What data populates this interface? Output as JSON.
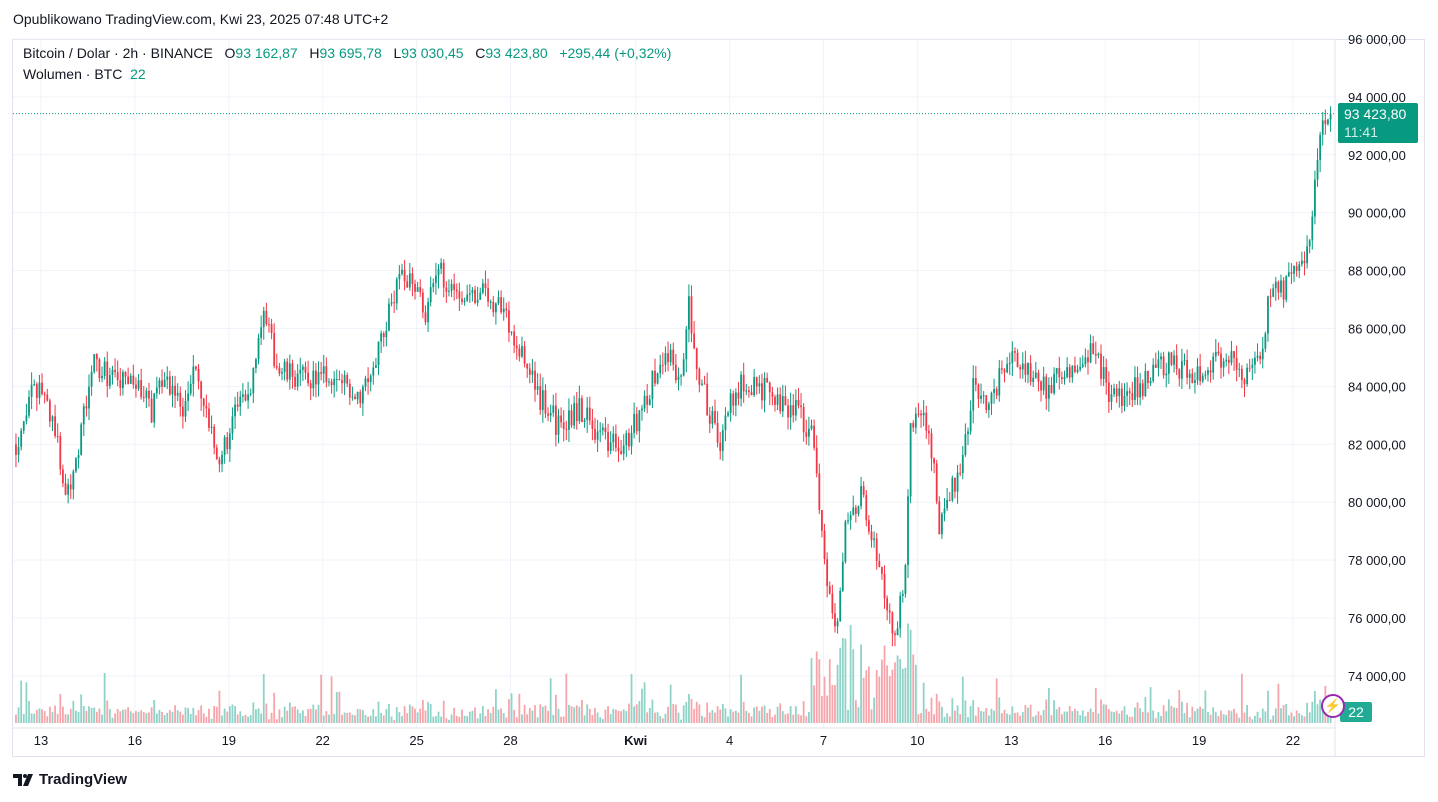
{
  "header": {
    "published": "Opublikowano TradingView.com, Kwi 23, 2025 07:48 UTC+2"
  },
  "legend": {
    "symbol": "Bitcoin / Dolar · 2h · BINANCE",
    "o_label": "O",
    "o": "93 162,87",
    "h_label": "H",
    "h": "93 695,78",
    "l_label": "L",
    "l": "93 030,45",
    "c_label": "C",
    "c": "93 423,80",
    "change": "+295,44 (+0,32%)",
    "volume_label": "Wolumen · BTC",
    "volume": "22"
  },
  "price_badge": {
    "price": "93 423,80",
    "countdown": "11:41"
  },
  "volume_badge": "22",
  "footer": {
    "brand": "TradingView"
  },
  "colors": {
    "up": "#089981",
    "down": "#f23645",
    "vol_up": "#8fd3c8",
    "vol_down": "#f7a5aa"
  },
  "chart_data": {
    "type": "candlestick",
    "title": "Bitcoin / Dolar · 2h · BINANCE",
    "ylim": [
      73000,
      96000
    ],
    "y_ticks": [
      {
        "v": 96000,
        "label": "96 000,00"
      },
      {
        "v": 94000,
        "label": "94 000,00"
      },
      {
        "v": 92000,
        "label": "92 000,00"
      },
      {
        "v": 90000,
        "label": "90 000,00"
      },
      {
        "v": 88000,
        "label": "88 000,00"
      },
      {
        "v": 86000,
        "label": "86 000,00"
      },
      {
        "v": 84000,
        "label": "84 000,00"
      },
      {
        "v": 82000,
        "label": "82 000,00"
      },
      {
        "v": 80000,
        "label": "80 000,00"
      },
      {
        "v": 78000,
        "label": "78 000,00"
      },
      {
        "v": 76000,
        "label": "76 000,00"
      },
      {
        "v": 74000,
        "label": "74 000,00"
      }
    ],
    "x_unit": "days since 13 Mar 2025",
    "x_ticks": [
      {
        "d": 0,
        "label": "13"
      },
      {
        "d": 3,
        "label": "16"
      },
      {
        "d": 6,
        "label": "19"
      },
      {
        "d": 9,
        "label": "22"
      },
      {
        "d": 12,
        "label": "25"
      },
      {
        "d": 15,
        "label": "28"
      },
      {
        "d": 19,
        "label": "Kwi"
      },
      {
        "d": 22,
        "label": "4"
      },
      {
        "d": 25,
        "label": "7"
      },
      {
        "d": 28,
        "label": "10"
      },
      {
        "d": 31,
        "label": "13"
      },
      {
        "d": 34,
        "label": "16"
      },
      {
        "d": 37,
        "label": "19"
      },
      {
        "d": 40,
        "label": "22"
      }
    ],
    "close_path": [
      [
        -0.8,
        82000
      ],
      [
        -0.4,
        83500
      ],
      [
        0,
        84000
      ],
      [
        0.4,
        82800
      ],
      [
        0.8,
        80200
      ],
      [
        1.1,
        81500
      ],
      [
        1.7,
        84800
      ],
      [
        2.4,
        84200
      ],
      [
        3.2,
        84000
      ],
      [
        3.5,
        83000
      ],
      [
        3.8,
        84500
      ],
      [
        4.6,
        83200
      ],
      [
        4.9,
        84700
      ],
      [
        5.4,
        82300
      ],
      [
        5.7,
        81500
      ],
      [
        6.2,
        83000
      ],
      [
        6.7,
        84000
      ],
      [
        7.0,
        86500
      ],
      [
        7.3,
        85700
      ],
      [
        7.6,
        84500
      ],
      [
        8.3,
        84300
      ],
      [
        9.2,
        84300
      ],
      [
        10.2,
        83800
      ],
      [
        10.8,
        85300
      ],
      [
        11.3,
        87300
      ],
      [
        11.8,
        88000
      ],
      [
        12.3,
        86500
      ],
      [
        12.7,
        88000
      ],
      [
        13.4,
        87200
      ],
      [
        14.0,
        87300
      ],
      [
        14.7,
        86800
      ],
      [
        15.3,
        85200
      ],
      [
        15.9,
        83700
      ],
      [
        16.6,
        82500
      ],
      [
        17.2,
        83300
      ],
      [
        17.9,
        82300
      ],
      [
        18.5,
        81700
      ],
      [
        19.1,
        83000
      ],
      [
        19.8,
        84800
      ],
      [
        20.1,
        85200
      ],
      [
        20.4,
        84000
      ],
      [
        20.7,
        86800
      ],
      [
        21.1,
        84000
      ],
      [
        21.7,
        82000
      ],
      [
        22.0,
        83500
      ],
      [
        22.5,
        84200
      ],
      [
        23.0,
        84000
      ],
      [
        23.6,
        83200
      ],
      [
        24.2,
        83300
      ],
      [
        24.7,
        82000
      ],
      [
        25.0,
        78000
      ],
      [
        25.4,
        75500
      ],
      [
        25.7,
        79000
      ],
      [
        26.2,
        80500
      ],
      [
        26.5,
        79000
      ],
      [
        26.8,
        77500
      ],
      [
        27.3,
        75500
      ],
      [
        27.6,
        77500
      ],
      [
        27.8,
        83000
      ],
      [
        28.4,
        82500
      ],
      [
        28.7,
        79000
      ],
      [
        29.4,
        81500
      ],
      [
        29.8,
        84000
      ],
      [
        30.3,
        83500
      ],
      [
        31.0,
        85300
      ],
      [
        31.6,
        84500
      ],
      [
        32.1,
        84000
      ],
      [
        33.2,
        84800
      ],
      [
        33.7,
        85200
      ],
      [
        34.2,
        83500
      ],
      [
        35.1,
        84000
      ],
      [
        35.9,
        84800
      ],
      [
        36.7,
        84500
      ],
      [
        37.3,
        84700
      ],
      [
        38.0,
        85000
      ],
      [
        38.6,
        84300
      ],
      [
        39.0,
        85000
      ],
      [
        39.3,
        87500
      ],
      [
        39.7,
        87200
      ],
      [
        40.2,
        88300
      ],
      [
        40.5,
        88700
      ],
      [
        40.7,
        91000
      ],
      [
        41.0,
        93300
      ],
      [
        41.2,
        93423.8
      ]
    ],
    "last_price": 93423.8
  }
}
